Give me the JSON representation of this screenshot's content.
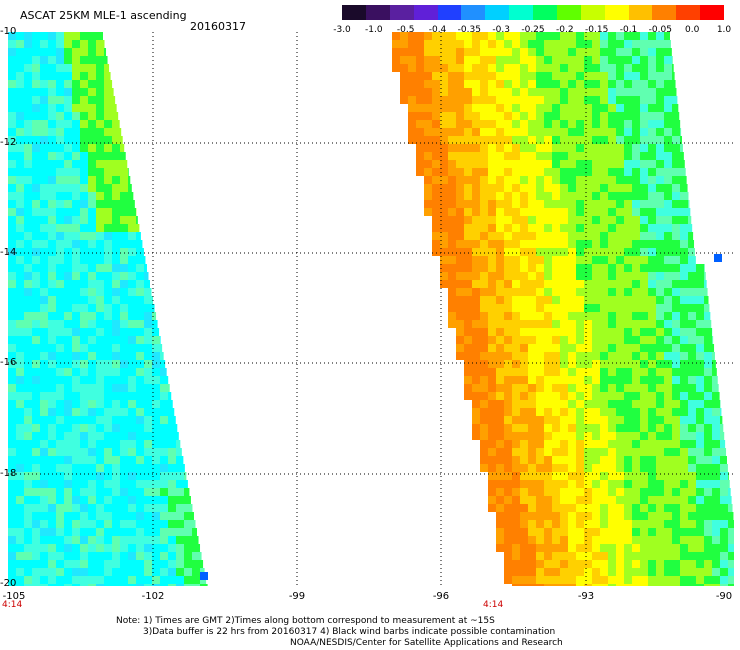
{
  "header": {
    "title": "ASCAT 25KM MLE-1 ascending",
    "date": "20160317"
  },
  "colorbar": {
    "labels": [
      "-3.0",
      "-1.0",
      "-0.5",
      "-0.4",
      "-0.35",
      "-0.3",
      "-0.25",
      "-0.2",
      "-0.15",
      "-0.1",
      "-0.05",
      "0.0",
      "1.0"
    ],
    "colors": [
      "#1a0a2a",
      "#3a1060",
      "#5a20a0",
      "#6020d8",
      "#2040ff",
      "#2090ff",
      "#00d0ff",
      "#00ffd0",
      "#00ff60",
      "#60ff00",
      "#c8ff00",
      "#ffff00",
      "#ffc000",
      "#ff8000",
      "#ff4000",
      "#ff0000"
    ]
  },
  "map": {
    "x_ticks": [
      "-105",
      "-102",
      "-99",
      "-96",
      "-93",
      "-90"
    ],
    "y_ticks": [
      "-10",
      "-12",
      "-14",
      "-16",
      "-18",
      "-20"
    ],
    "time_labels": [
      "4:14",
      "4:14"
    ],
    "swath_palette": {
      "cyan": "#00ffff",
      "aqua": "#40ffe0",
      "mint": "#60ffb0",
      "green": "#20ff40",
      "lime": "#a0ff20",
      "yellow": "#ffff00",
      "gold": "#ffd000",
      "orange": "#ffa000",
      "dark_orange": "#ff8000",
      "blue": "#0060ff"
    }
  },
  "footer": {
    "note1": "Note: 1) Times are GMT 2)Times along bottom correspond to measurement at ~15S",
    "note2": "3)Data buffer is 22 hrs from 20160317 4) Black wind barbs indicate possible contamination",
    "note3": "NOAA/NESDIS/Center for Satellite Applications and Research"
  }
}
